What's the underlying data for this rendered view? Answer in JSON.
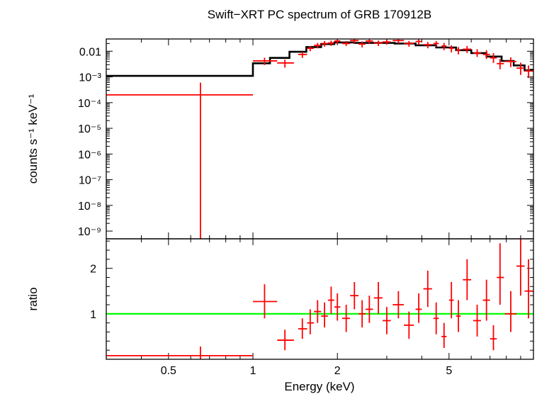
{
  "title": "Swift−XRT PC spectrum of GRB 170912B",
  "xlabel": "Energy (keV)",
  "colors": {
    "data": "#ff0000",
    "model": "#000000",
    "unity": "#00ff00",
    "frame": "#000000"
  },
  "chart_data": [
    {
      "type": "line",
      "panel": "spectrum",
      "ylabel": "counts s⁻¹ keV⁻¹",
      "xlim": [
        0.3,
        10
      ],
      "ylim": [
        5e-10,
        0.03
      ],
      "xscale": "log",
      "yscale": "log",
      "yticks": [
        {
          "v": 1e-09,
          "label": "10⁻⁹"
        },
        {
          "v": 1e-08,
          "label": "10⁻⁸"
        },
        {
          "v": 1e-07,
          "label": "10⁻⁷"
        },
        {
          "v": 1e-06,
          "label": "10⁻⁶"
        },
        {
          "v": 1e-05,
          "label": "10⁻⁵"
        },
        {
          "v": 0.0001,
          "label": "10⁻⁴"
        },
        {
          "v": 0.001,
          "label": "10⁻³"
        },
        {
          "v": 0.01,
          "label": "0.01"
        }
      ],
      "model": [
        [
          0.3,
          0.0011
        ],
        [
          1.0,
          0.0011
        ],
        [
          1.0,
          0.0034
        ],
        [
          1.15,
          0.0034
        ],
        [
          1.15,
          0.0055
        ],
        [
          1.35,
          0.0055
        ],
        [
          1.35,
          0.0095
        ],
        [
          1.55,
          0.0095
        ],
        [
          1.55,
          0.0145
        ],
        [
          1.75,
          0.0145
        ],
        [
          1.75,
          0.019
        ],
        [
          1.95,
          0.019
        ],
        [
          1.95,
          0.022
        ],
        [
          2.3,
          0.022
        ],
        [
          2.3,
          0.021
        ],
        [
          3.2,
          0.021
        ],
        [
          3.2,
          0.02
        ],
        [
          3.8,
          0.02
        ],
        [
          3.8,
          0.017
        ],
        [
          4.5,
          0.017
        ],
        [
          4.5,
          0.014
        ],
        [
          5.3,
          0.014
        ],
        [
          5.3,
          0.011
        ],
        [
          6.0,
          0.011
        ],
        [
          6.0,
          0.0085
        ],
        [
          6.8,
          0.0085
        ],
        [
          6.8,
          0.0062
        ],
        [
          7.7,
          0.0062
        ],
        [
          7.7,
          0.0042
        ],
        [
          8.5,
          0.0042
        ],
        [
          8.5,
          0.0028
        ],
        [
          9.3,
          0.0028
        ],
        [
          9.3,
          0.0018
        ],
        [
          10.0,
          0.0018
        ]
      ],
      "points": [
        {
          "x": 0.65,
          "xlo": 0.3,
          "xhi": 1.0,
          "y": 0.0002,
          "ylo": 5e-10,
          "yhi": 0.0006
        },
        {
          "x": 1.1,
          "xlo": 1.0,
          "xhi": 1.22,
          "y": 0.0042,
          "ylo": 0.0029,
          "yhi": 0.0056
        },
        {
          "x": 1.3,
          "xlo": 1.22,
          "xhi": 1.4,
          "y": 0.0035,
          "ylo": 0.0023,
          "yhi": 0.0047
        },
        {
          "x": 1.5,
          "xlo": 1.45,
          "xhi": 1.56,
          "y": 0.0075,
          "ylo": 0.0055,
          "yhi": 0.0095
        },
        {
          "x": 1.6,
          "xlo": 1.56,
          "xhi": 1.65,
          "y": 0.013,
          "ylo": 0.01,
          "yhi": 0.016
        },
        {
          "x": 1.7,
          "xlo": 1.65,
          "xhi": 1.75,
          "y": 0.017,
          "ylo": 0.013,
          "yhi": 0.021
        },
        {
          "x": 1.8,
          "xlo": 1.75,
          "xhi": 1.85,
          "y": 0.02,
          "ylo": 0.015,
          "yhi": 0.025
        },
        {
          "x": 1.9,
          "xlo": 1.85,
          "xhi": 1.95,
          "y": 0.021,
          "ylo": 0.016,
          "yhi": 0.026
        },
        {
          "x": 2.0,
          "xlo": 1.95,
          "xhi": 2.05,
          "y": 0.025,
          "ylo": 0.019,
          "yhi": 0.03
        },
        {
          "x": 2.15,
          "xlo": 2.08,
          "xhi": 2.22,
          "y": 0.02,
          "ylo": 0.016,
          "yhi": 0.025
        },
        {
          "x": 2.3,
          "xlo": 2.22,
          "xhi": 2.38,
          "y": 0.026,
          "ylo": 0.02,
          "yhi": 0.03
        },
        {
          "x": 2.45,
          "xlo": 2.38,
          "xhi": 2.52,
          "y": 0.019,
          "ylo": 0.014,
          "yhi": 0.024
        },
        {
          "x": 2.6,
          "xlo": 2.52,
          "xhi": 2.68,
          "y": 0.025,
          "ylo": 0.019,
          "yhi": 0.03
        },
        {
          "x": 2.8,
          "xlo": 2.7,
          "xhi": 2.9,
          "y": 0.021,
          "ylo": 0.016,
          "yhi": 0.026
        },
        {
          "x": 3.0,
          "xlo": 2.9,
          "xhi": 3.1,
          "y": 0.023,
          "ylo": 0.018,
          "yhi": 0.028
        },
        {
          "x": 3.3,
          "xlo": 3.15,
          "xhi": 3.45,
          "y": 0.026,
          "ylo": 0.02,
          "yhi": 0.03
        },
        {
          "x": 3.6,
          "xlo": 3.45,
          "xhi": 3.75,
          "y": 0.02,
          "ylo": 0.015,
          "yhi": 0.025
        },
        {
          "x": 3.9,
          "xlo": 3.8,
          "xhi": 4.0,
          "y": 0.024,
          "ylo": 0.018,
          "yhi": 0.029
        },
        {
          "x": 4.2,
          "xlo": 4.05,
          "xhi": 4.35,
          "y": 0.018,
          "ylo": 0.013,
          "yhi": 0.023
        },
        {
          "x": 4.5,
          "xlo": 4.4,
          "xhi": 4.6,
          "y": 0.02,
          "ylo": 0.015,
          "yhi": 0.025
        },
        {
          "x": 4.8,
          "xlo": 4.7,
          "xhi": 4.9,
          "y": 0.016,
          "ylo": 0.011,
          "yhi": 0.021
        },
        {
          "x": 5.1,
          "xlo": 5.0,
          "xhi": 5.2,
          "y": 0.013,
          "ylo": 0.009,
          "yhi": 0.017
        },
        {
          "x": 5.4,
          "xlo": 5.3,
          "xhi": 5.5,
          "y": 0.011,
          "ylo": 0.0075,
          "yhi": 0.0145
        },
        {
          "x": 5.8,
          "xlo": 5.6,
          "xhi": 6.0,
          "y": 0.012,
          "ylo": 0.0085,
          "yhi": 0.016
        },
        {
          "x": 6.3,
          "xlo": 6.1,
          "xhi": 6.5,
          "y": 0.0085,
          "ylo": 0.006,
          "yhi": 0.012
        },
        {
          "x": 6.8,
          "xlo": 6.6,
          "xhi": 7.0,
          "y": 0.0075,
          "ylo": 0.005,
          "yhi": 0.011
        },
        {
          "x": 7.2,
          "xlo": 7.0,
          "xhi": 7.4,
          "y": 0.0055,
          "ylo": 0.0035,
          "yhi": 0.0085
        },
        {
          "x": 7.6,
          "xlo": 7.4,
          "xhi": 7.85,
          "y": 0.0033,
          "ylo": 0.002,
          "yhi": 0.005
        },
        {
          "x": 8.3,
          "xlo": 7.9,
          "xhi": 8.7,
          "y": 0.004,
          "ylo": 0.0024,
          "yhi": 0.0058
        },
        {
          "x": 9.0,
          "xlo": 8.7,
          "xhi": 9.3,
          "y": 0.0022,
          "ylo": 0.0012,
          "yhi": 0.0036
        },
        {
          "x": 9.6,
          "xlo": 9.3,
          "xhi": 10.0,
          "y": 0.0017,
          "ylo": 0.0009,
          "yhi": 0.0028
        }
      ]
    },
    {
      "type": "scatter",
      "panel": "ratio",
      "ylabel": "ratio",
      "xlim": [
        0.3,
        10
      ],
      "ylim": [
        0,
        2.65
      ],
      "xscale": "log",
      "yscale": "linear",
      "yticks": [
        {
          "v": 1,
          "label": "1"
        },
        {
          "v": 2,
          "label": "2"
        }
      ],
      "xticks": [
        {
          "v": 0.5,
          "label": "0.5"
        },
        {
          "v": 1,
          "label": "1"
        },
        {
          "v": 2,
          "label": "2"
        },
        {
          "v": 5,
          "label": "5"
        }
      ],
      "unity": 1,
      "points": [
        {
          "x": 0.65,
          "xlo": 0.3,
          "xhi": 1.0,
          "y": 0.08,
          "ylo": 0.0,
          "yhi": 0.28
        },
        {
          "x": 1.1,
          "xlo": 1.0,
          "xhi": 1.22,
          "y": 1.27,
          "ylo": 0.9,
          "yhi": 1.65
        },
        {
          "x": 1.3,
          "xlo": 1.22,
          "xhi": 1.4,
          "y": 0.42,
          "ylo": 0.2,
          "yhi": 0.65
        },
        {
          "x": 1.5,
          "xlo": 1.45,
          "xhi": 1.56,
          "y": 0.67,
          "ylo": 0.45,
          "yhi": 0.9
        },
        {
          "x": 1.6,
          "xlo": 1.56,
          "xhi": 1.65,
          "y": 0.8,
          "ylo": 0.55,
          "yhi": 1.1
        },
        {
          "x": 1.7,
          "xlo": 1.65,
          "xhi": 1.75,
          "y": 1.05,
          "ylo": 0.8,
          "yhi": 1.3
        },
        {
          "x": 1.8,
          "xlo": 1.75,
          "xhi": 1.85,
          "y": 0.95,
          "ylo": 0.7,
          "yhi": 1.25
        },
        {
          "x": 1.9,
          "xlo": 1.85,
          "xhi": 1.95,
          "y": 1.3,
          "ylo": 1.0,
          "yhi": 1.6
        },
        {
          "x": 2.0,
          "xlo": 1.95,
          "xhi": 2.05,
          "y": 1.15,
          "ylo": 0.85,
          "yhi": 1.45
        },
        {
          "x": 2.15,
          "xlo": 2.08,
          "xhi": 2.22,
          "y": 0.9,
          "ylo": 0.6,
          "yhi": 1.2
        },
        {
          "x": 2.3,
          "xlo": 2.22,
          "xhi": 2.38,
          "y": 1.4,
          "ylo": 1.1,
          "yhi": 1.7
        },
        {
          "x": 2.45,
          "xlo": 2.38,
          "xhi": 2.52,
          "y": 1.0,
          "ylo": 0.7,
          "yhi": 1.3
        },
        {
          "x": 2.6,
          "xlo": 2.52,
          "xhi": 2.68,
          "y": 1.1,
          "ylo": 0.8,
          "yhi": 1.4
        },
        {
          "x": 2.8,
          "xlo": 2.7,
          "xhi": 2.9,
          "y": 1.35,
          "ylo": 1.0,
          "yhi": 1.7
        },
        {
          "x": 3.0,
          "xlo": 2.9,
          "xhi": 3.1,
          "y": 0.85,
          "ylo": 0.55,
          "yhi": 1.15
        },
        {
          "x": 3.3,
          "xlo": 3.15,
          "xhi": 3.45,
          "y": 1.2,
          "ylo": 0.9,
          "yhi": 1.5
        },
        {
          "x": 3.6,
          "xlo": 3.45,
          "xhi": 3.75,
          "y": 0.75,
          "ylo": 0.45,
          "yhi": 1.05
        },
        {
          "x": 3.9,
          "xlo": 3.8,
          "xhi": 4.0,
          "y": 1.1,
          "ylo": 0.8,
          "yhi": 1.45
        },
        {
          "x": 4.2,
          "xlo": 4.05,
          "xhi": 4.35,
          "y": 1.55,
          "ylo": 1.15,
          "yhi": 1.95
        },
        {
          "x": 4.5,
          "xlo": 4.4,
          "xhi": 4.6,
          "y": 0.9,
          "ylo": 0.55,
          "yhi": 1.25
        },
        {
          "x": 4.8,
          "xlo": 4.7,
          "xhi": 4.9,
          "y": 0.5,
          "ylo": 0.25,
          "yhi": 0.8
        },
        {
          "x": 5.1,
          "xlo": 5.0,
          "xhi": 5.2,
          "y": 1.3,
          "ylo": 0.9,
          "yhi": 1.7
        },
        {
          "x": 5.4,
          "xlo": 5.3,
          "xhi": 5.5,
          "y": 0.95,
          "ylo": 0.6,
          "yhi": 1.3
        },
        {
          "x": 5.8,
          "xlo": 5.6,
          "xhi": 6.0,
          "y": 1.75,
          "ylo": 1.3,
          "yhi": 2.2
        },
        {
          "x": 6.3,
          "xlo": 6.1,
          "xhi": 6.5,
          "y": 0.85,
          "ylo": 0.5,
          "yhi": 1.2
        },
        {
          "x": 6.8,
          "xlo": 6.6,
          "xhi": 7.0,
          "y": 1.3,
          "ylo": 0.85,
          "yhi": 1.75
        },
        {
          "x": 7.2,
          "xlo": 7.0,
          "xhi": 7.4,
          "y": 0.45,
          "ylo": 0.2,
          "yhi": 0.75
        },
        {
          "x": 7.6,
          "xlo": 7.4,
          "xhi": 7.85,
          "y": 1.8,
          "ylo": 1.2,
          "yhi": 2.55
        },
        {
          "x": 8.3,
          "xlo": 7.9,
          "xhi": 8.7,
          "y": 1.0,
          "ylo": 0.6,
          "yhi": 1.5
        },
        {
          "x": 9.0,
          "xlo": 8.7,
          "xhi": 9.3,
          "y": 2.05,
          "ylo": 1.4,
          "yhi": 2.65
        },
        {
          "x": 9.6,
          "xlo": 9.3,
          "xhi": 10.0,
          "y": 1.5,
          "ylo": 0.9,
          "yhi": 2.2
        }
      ]
    }
  ]
}
